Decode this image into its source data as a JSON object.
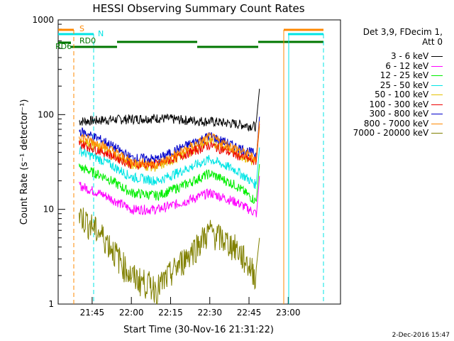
{
  "chart_data": {
    "type": "line",
    "title": "HESSI Observing Summary Count Rates",
    "xlabel": "Start Time (30-Nov-16 21:31:22)",
    "ylabel": "Count Rate (s⁻¹ detector⁻¹)",
    "yscale": "log",
    "ylim": [
      1,
      1000
    ],
    "x_range_minutes": [
      21.533,
      23.333
    ],
    "x_ticks": [
      "21:45",
      "22:00",
      "22:15",
      "22:30",
      "22:45",
      "23:00"
    ],
    "y_ticks": [
      "1",
      "10",
      "100",
      "1000"
    ],
    "timestamp": "2-Dec-2016 15:47",
    "legend_header": [
      "Det 3,9, FDecim 1,",
      "Att 0"
    ],
    "series": [
      {
        "name": "3 - 6 keV",
        "color": "#000000",
        "times": [
          "21:40",
          "21:50",
          "22:00",
          "22:10",
          "22:20",
          "22:30",
          "22:40",
          "22:48"
        ],
        "values": [
          85,
          88,
          90,
          92,
          88,
          85,
          80,
          75
        ]
      },
      {
        "name": "6 - 12 keV",
        "color": "#ff00ff",
        "times": [
          "21:40",
          "21:50",
          "22:00",
          "22:10",
          "22:20",
          "22:30",
          "22:40",
          "22:48"
        ],
        "values": [
          18,
          14,
          10,
          10,
          12,
          15,
          12,
          9
        ]
      },
      {
        "name": "12 - 25 keV",
        "color": "#00ee00",
        "times": [
          "21:40",
          "21:50",
          "22:00",
          "22:10",
          "22:20",
          "22:30",
          "22:40",
          "22:48"
        ],
        "values": [
          28,
          22,
          15,
          14,
          18,
          24,
          18,
          12
        ]
      },
      {
        "name": "25 - 50 keV",
        "color": "#00e5e5",
        "times": [
          "21:40",
          "21:50",
          "22:00",
          "22:10",
          "22:20",
          "22:30",
          "22:40",
          "22:48"
        ],
        "values": [
          42,
          32,
          22,
          20,
          26,
          34,
          26,
          18
        ]
      },
      {
        "name": "50 - 100 keV",
        "color": "#e6c000",
        "times": [
          "21:40",
          "21:50",
          "22:00",
          "22:10",
          "22:20",
          "22:30",
          "22:40",
          "22:48"
        ],
        "values": [
          55,
          42,
          30,
          28,
          38,
          52,
          40,
          30
        ]
      },
      {
        "name": "100 - 300 keV",
        "color": "#ee0000",
        "times": [
          "21:40",
          "21:50",
          "22:00",
          "22:10",
          "22:20",
          "22:30",
          "22:40",
          "22:48"
        ],
        "values": [
          50,
          40,
          30,
          30,
          38,
          48,
          38,
          32
        ]
      },
      {
        "name": "300 - 800 keV",
        "color": "#0000cc",
        "times": [
          "21:40",
          "21:50",
          "22:00",
          "22:10",
          "22:20",
          "22:30",
          "22:40",
          "22:48"
        ],
        "values": [
          68,
          52,
          35,
          34,
          46,
          60,
          46,
          38
        ]
      },
      {
        "name": "800 - 7000 keV",
        "color": "#ff8800",
        "times": [
          "21:40",
          "21:50",
          "22:00",
          "22:10",
          "22:20",
          "22:30",
          "22:40",
          "22:48"
        ],
        "values": [
          60,
          46,
          32,
          30,
          42,
          58,
          44,
          34
        ]
      },
      {
        "name": "7000 - 20000 keV",
        "color": "#808000",
        "times": [
          "21:40",
          "21:50",
          "22:00",
          "22:10",
          "22:20",
          "22:30",
          "22:40",
          "22:48"
        ],
        "values": [
          9,
          5,
          2,
          1.5,
          3,
          6,
          4,
          2
        ]
      }
    ],
    "markers": [
      {
        "label": "S",
        "color": "#ff8800"
      },
      {
        "label": "N",
        "color": "#00e5e5"
      },
      {
        "label": "RD0",
        "color": "#007700"
      },
      {
        "label": "RD6",
        "color": "#007700"
      }
    ]
  }
}
